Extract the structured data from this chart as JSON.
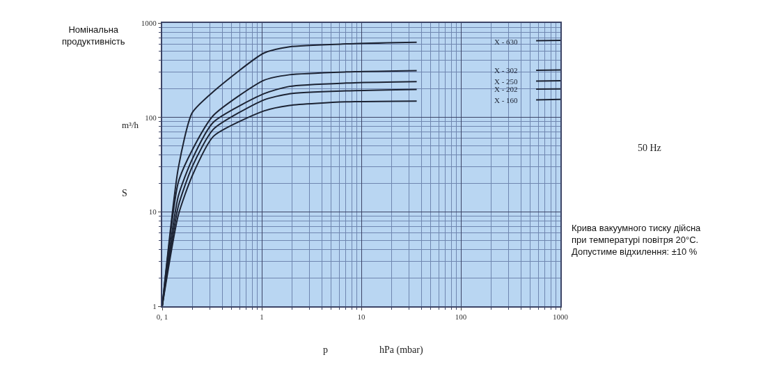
{
  "chart_data": {
    "type": "line",
    "title": "Номінальна продуктивність",
    "xlabel": "hPa (mbar)",
    "ylabel": "m³/h",
    "annotations": [
      "p",
      "S",
      "50 Hz",
      "Крива вакуумного тиску дійсна\nпри температурі повітря 20°C.\nДопустиме відхилення: ±10 %"
    ],
    "x": [
      0.1,
      0.145,
      0.2,
      0.327,
      1.05,
      1.9,
      7,
      36,
      100,
      570,
      1000
    ],
    "series": [
      {
        "name": "X - 630",
        "color": "#1c2333",
        "values": [
          1,
          29,
          112,
          188,
          480,
          560,
          600,
          624,
          null,
          650,
          653
        ]
      },
      {
        "name": "X - 302",
        "color": "#1c2333",
        "values": [
          1,
          20.5,
          45,
          105,
          247,
          283,
          303,
          313,
          null,
          316,
          318
        ]
      },
      {
        "name": "X - 250",
        "color": "#1c2333",
        "values": [
          1,
          14.6,
          36,
          89,
          178,
          213,
          231,
          239,
          null,
          242,
          244
        ]
      },
      {
        "name": "X - 202",
        "color": "#1c2333",
        "values": [
          1,
          11.4,
          30,
          75,
          153,
          178,
          191,
          198,
          null,
          199,
          200
        ]
      },
      {
        "name": "X - 160",
        "color": "#1c2333",
        "values": [
          1,
          9.2,
          24,
          63,
          117,
          134,
          146,
          149,
          null,
          153,
          155
        ]
      }
    ],
    "log": "xy",
    "xlim": [
      0.1,
      1000
    ],
    "ylim": [
      1,
      1000
    ],
    "xticks": [
      {
        "value": 0.1,
        "label": "0, 1"
      },
      {
        "value": 0.2,
        "label": null
      },
      {
        "value": 0.3,
        "label": null
      },
      {
        "value": 0.4,
        "label": null
      },
      {
        "value": 0.5,
        "label": null
      },
      {
        "value": 0.6,
        "label": null
      },
      {
        "value": 0.7,
        "label": null
      },
      {
        "value": 0.8,
        "label": null
      },
      {
        "value": 0.9,
        "label": null
      },
      1,
      {
        "value": 2,
        "label": null
      },
      {
        "value": 3,
        "label": null
      },
      {
        "value": 4,
        "label": null
      },
      {
        "value": 5,
        "label": null
      },
      {
        "value": 6,
        "label": null
      },
      {
        "value": 7,
        "label": null
      },
      {
        "value": 8,
        "label": null
      },
      {
        "value": 9,
        "label": null
      },
      10,
      {
        "value": 20,
        "label": null
      },
      {
        "value": 30,
        "label": null
      },
      {
        "value": 40,
        "label": null
      },
      {
        "value": 50,
        "label": null
      },
      {
        "value": 60,
        "label": null
      },
      {
        "value": 70,
        "label": null
      },
      {
        "value": 80,
        "label": null
      },
      {
        "value": 90,
        "label": null
      },
      100,
      {
        "value": 200,
        "label": null
      },
      {
        "value": 300,
        "label": null
      },
      {
        "value": 400,
        "label": null
      },
      {
        "value": 500,
        "label": null
      },
      {
        "value": 600,
        "label": null
      },
      {
        "value": 700,
        "label": null
      },
      {
        "value": 800,
        "label": null
      },
      {
        "value": 900,
        "label": null
      },
      1000
    ],
    "yticks": [
      1,
      {
        "value": 2,
        "label": null
      },
      {
        "value": 3,
        "label": null
      },
      {
        "value": 4,
        "label": null
      },
      {
        "value": 5,
        "label": null
      },
      {
        "value": 6,
        "label": null
      },
      {
        "value": 7,
        "label": null
      },
      {
        "value": 8,
        "label": null
      },
      {
        "value": 9,
        "label": null
      },
      10,
      {
        "value": 20,
        "label": null
      },
      {
        "value": 30,
        "label": null
      },
      {
        "value": 40,
        "label": null
      },
      {
        "value": 50,
        "label": null
      },
      {
        "value": 60,
        "label": null
      },
      {
        "value": 70,
        "label": null
      },
      {
        "value": 80,
        "label": null
      },
      {
        "value": 90,
        "label": null
      },
      100,
      {
        "value": 200,
        "label": null
      },
      {
        "value": 300,
        "label": null
      },
      {
        "value": 400,
        "label": null
      },
      {
        "value": 500,
        "label": null
      },
      {
        "value": 600,
        "label": null
      },
      {
        "value": 700,
        "label": null
      },
      {
        "value": 800,
        "label": null
      },
      {
        "value": 900,
        "label": null
      },
      1000
    ],
    "grid": true,
    "legend": false,
    "marker": "none",
    "line_style": "solid"
  }
}
